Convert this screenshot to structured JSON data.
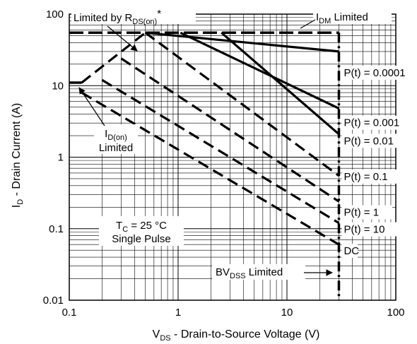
{
  "chart_data": {
    "type": "line",
    "title": "",
    "xlabel": {
      "main": "V",
      "sub": "DS",
      "rest": " - Drain-to-Source Voltage (V)"
    },
    "ylabel": {
      "main": "I",
      "sub": "D",
      "rest": " - Drain Current (A)"
    },
    "x_scale": "log",
    "y_scale": "log",
    "xlim": [
      0.1,
      100
    ],
    "ylim": [
      0.01,
      100
    ],
    "grid": true,
    "x_ticks": [
      {
        "value": 0.1,
        "label": "0.1"
      },
      {
        "value": 1,
        "label": "1"
      },
      {
        "value": 10,
        "label": "10"
      },
      {
        "value": 100,
        "label": "100"
      }
    ],
    "y_ticks": [
      {
        "value": 0.01,
        "label": "0.01"
      },
      {
        "value": 0.1,
        "label": "0.1"
      },
      {
        "value": 1,
        "label": "1"
      },
      {
        "value": 10,
        "label": "10"
      },
      {
        "value": 100,
        "label": "100"
      }
    ],
    "limits": {
      "idm": 55,
      "id_on": 11,
      "bvdss": 30,
      "rds_on_line": {
        "x": [
          0.13,
          0.5
        ],
        "y": [
          11,
          55
        ]
      }
    },
    "series": [
      {
        "name": "P(t) = 0.0001",
        "style": "solid",
        "x": [
          0.5,
          30
        ],
        "y": [
          55,
          30
        ]
      },
      {
        "name": "P(t) = 0.001",
        "style": "solid",
        "x": [
          1.05,
          30
        ],
        "y": [
          55,
          4.8
        ]
      },
      {
        "name": "P(t) = 0.01",
        "style": "solid",
        "x": [
          2.5,
          30
        ],
        "y": [
          55,
          2.1
        ]
      },
      {
        "name": "P(t) = 0.1",
        "style": "dashed",
        "x": [
          0.5,
          30
        ],
        "y": [
          55,
          0.55
        ]
      },
      {
        "name": "P(t) = 1",
        "style": "dashed",
        "x": [
          0.3,
          30
        ],
        "y": [
          24,
          0.24
        ]
      },
      {
        "name": "P(t) = 10",
        "style": "dashed",
        "x": [
          0.2,
          30
        ],
        "y": [
          12,
          0.12
        ]
      },
      {
        "name": "DC",
        "style": "dashed",
        "x": [
          0.13,
          30
        ],
        "y": [
          8,
          0.06
        ]
      }
    ],
    "annotations": {
      "rds_label": {
        "main": "Limited by R",
        "sub": "DS(on)",
        "rest": "*"
      },
      "idm_label": {
        "main": "I",
        "sub": "DM",
        "rest": " Limited"
      },
      "idon_label": {
        "main": "I",
        "sub": "D(on)",
        "line2": "Limited"
      },
      "bvdss_label": {
        "main": "BV",
        "sub": "DSS",
        "rest": " Limited"
      },
      "conditions": {
        "main": "T",
        "sub": "C",
        "rest": " = 25 °C",
        "line2": "Single Pulse"
      }
    }
  }
}
